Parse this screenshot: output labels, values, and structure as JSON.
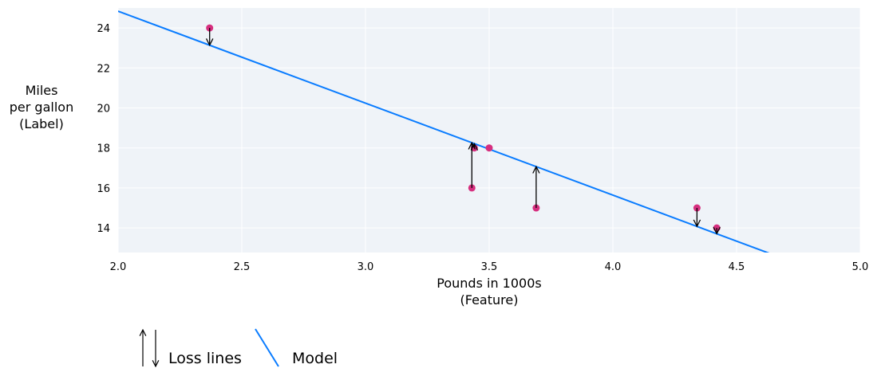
{
  "chart_data": {
    "type": "scatter",
    "title": "",
    "xlabel": [
      "Pounds in 1000s",
      "(Feature)"
    ],
    "ylabel": [
      "Miles",
      "per gallon",
      "(Label)"
    ],
    "xlim": [
      2.0,
      5.0
    ],
    "ylim": [
      12.77,
      25.0
    ],
    "xticks": [
      2.0,
      2.5,
      3.0,
      3.5,
      4.0,
      4.5,
      5.0
    ],
    "xtick_labels": [
      "2.0",
      "2.5",
      "3.0",
      "3.5",
      "4.0",
      "4.5",
      "5.0"
    ],
    "yticks": [
      14,
      16,
      18,
      20,
      22,
      24
    ],
    "ytick_labels": [
      "14",
      "16",
      "18",
      "20",
      "22",
      "24"
    ],
    "grid": true,
    "points": [
      {
        "x": 2.37,
        "y": 24
      },
      {
        "x": 3.43,
        "y": 16
      },
      {
        "x": 3.44,
        "y": 18
      },
      {
        "x": 3.5,
        "y": 18
      },
      {
        "x": 3.69,
        "y": 15
      },
      {
        "x": 4.34,
        "y": 15
      },
      {
        "x": 4.42,
        "y": 14
      }
    ],
    "model": {
      "slope": -4.6,
      "intercept": 34.04
    },
    "legend": {
      "placement": "bottom-left",
      "entries": [
        "Loss lines",
        "Model"
      ]
    },
    "colors": {
      "points": "#d62f7f",
      "model": "#0a7cff",
      "loss": "#000000",
      "background": "#eff3f8",
      "grid": "#ffffff"
    }
  }
}
